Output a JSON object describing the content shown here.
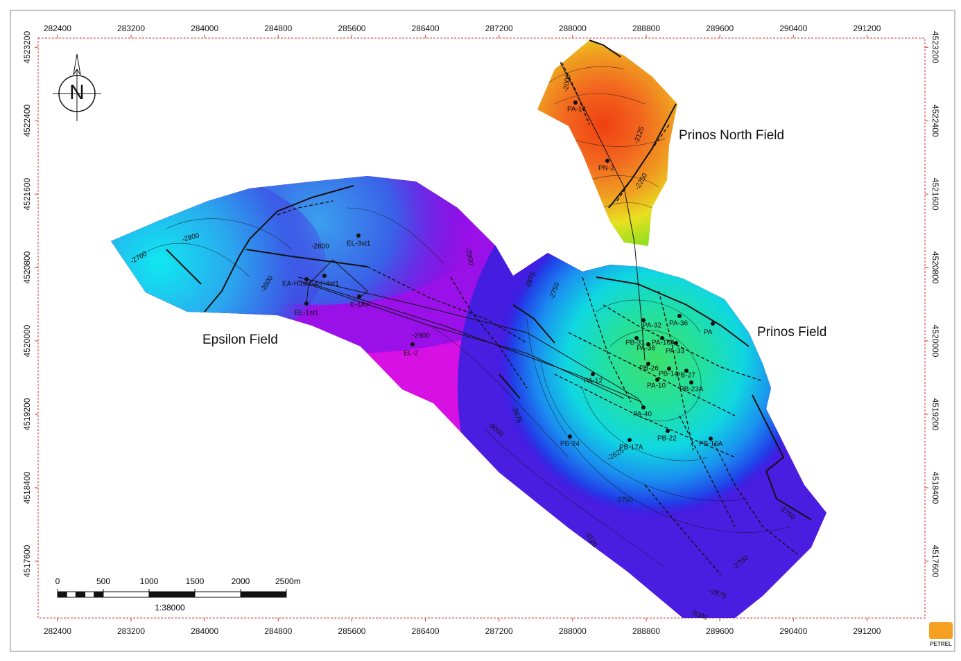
{
  "map": {
    "xlim": [
      282190,
      291830
    ],
    "ylim": [
      4516980,
      4523300
    ],
    "xticks": [
      282400,
      283200,
      284000,
      284800,
      285600,
      286400,
      287200,
      288000,
      288800,
      289600,
      290400,
      291200
    ],
    "yticks": [
      4517600,
      4518400,
      4519200,
      4520000,
      4520800,
      4521600,
      4522400,
      4523200
    ],
    "north_label": "N",
    "fields": [
      "Epsilon Field",
      "Prinos North Field",
      "Prinos Field"
    ],
    "wells": [
      "EL-3st1",
      "EA-H3st1",
      "EA-H4st1",
      "E-1As",
      "EL-1st1",
      "EL-2",
      "PN-2",
      "PA-14",
      "PA-32",
      "PA-36",
      "PB-31",
      "PA-16A",
      "PA-38",
      "PA-33",
      "PB-26",
      "PB-14",
      "PB-27",
      "PA-10",
      "PB-23A",
      "PA-12",
      "PA-40",
      "PB-24",
      "PB-17A",
      "PB-22",
      "PB-16A",
      "PA"
    ],
    "contour_labels": [
      -2800,
      -2800,
      -2700,
      -2800,
      -2900,
      -2875,
      -2750,
      -3000,
      -2875,
      -2625,
      -2750,
      -3125,
      -2750,
      -2750,
      -2875,
      -3000,
      -2250,
      -2125,
      -2000,
      -2900
    ],
    "scale_bar": {
      "ticks": [
        0,
        500,
        1000,
        1500,
        2000,
        {
          "value": 2500,
          "label": "2500m"
        }
      ],
      "ratio": "1:38000"
    },
    "logo": "PETREL"
  }
}
